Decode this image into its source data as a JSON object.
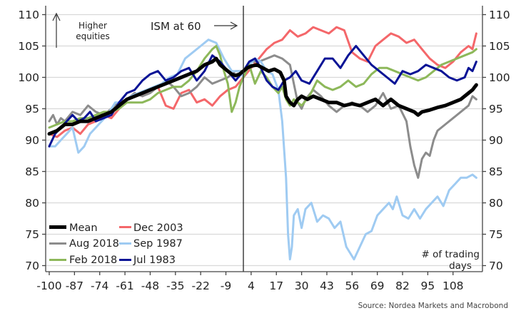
{
  "chart_data": {
    "type": "line",
    "title": "",
    "xlabel": "# of trading days",
    "ylabel": "",
    "xlim": [
      -102,
      123
    ],
    "ylim": [
      69,
      111
    ],
    "grid": true,
    "legend_placement": "bottom-left",
    "x_ticks": [
      -100,
      -87,
      -74,
      -61,
      -48,
      -35,
      -22,
      -9,
      4,
      17,
      30,
      43,
      56,
      69,
      82,
      95,
      108
    ],
    "y_ticks": [
      70,
      75,
      80,
      85,
      90,
      95,
      100,
      105,
      110
    ],
    "event_day": 0,
    "annotations": {
      "higher_equities": [
        "Higher",
        "equities"
      ],
      "ism": "ISM at 60",
      "xlabel_lines": [
        "# of trading",
        "days"
      ],
      "source": "Source: Nordea Markets and Macrobond"
    },
    "series": [
      {
        "name": "Dec 2003",
        "color": "#f4676a",
        "x": [
          -100,
          -96,
          -92,
          -88,
          -84,
          -80,
          -76,
          -72,
          -68,
          -64,
          -60,
          -56,
          -52,
          -48,
          -44,
          -40,
          -36,
          -32,
          -28,
          -24,
          -20,
          -16,
          -12,
          -8,
          -4,
          0,
          4,
          8,
          12,
          16,
          20,
          24,
          28,
          32,
          36,
          40,
          44,
          48,
          52,
          56,
          60,
          64,
          68,
          72,
          76,
          80,
          84,
          88,
          92,
          96,
          100,
          104,
          108,
          112,
          116,
          118,
          120
        ],
        "y": [
          91,
          90.5,
          91.5,
          92,
          91,
          92.5,
          93,
          94,
          93.5,
          95,
          96.5,
          97.5,
          97,
          98,
          98.5,
          95.5,
          95,
          97.5,
          98,
          96,
          96.5,
          95.5,
          97,
          98,
          98.5,
          100,
          101.5,
          103,
          104.5,
          105.5,
          106,
          107.5,
          106.5,
          107,
          108,
          107.5,
          107,
          108,
          107.5,
          104,
          103,
          102.5,
          105,
          106,
          107,
          106.5,
          105.5,
          106,
          104.5,
          103,
          102,
          101.5,
          102.5,
          104,
          105,
          104.5,
          107
        ]
      },
      {
        "name": "Aug 2018",
        "color": "#8c8c8c",
        "x": [
          -100,
          -98,
          -96,
          -94,
          -92,
          -88,
          -84,
          -80,
          -76,
          -72,
          -68,
          -64,
          -60,
          -56,
          -52,
          -48,
          -44,
          -40,
          -36,
          -32,
          -28,
          -24,
          -20,
          -16,
          -12,
          -8,
          -4,
          0,
          4,
          8,
          12,
          16,
          20,
          24,
          26,
          28,
          30,
          32,
          36,
          40,
          44,
          48,
          52,
          56,
          60,
          64,
          68,
          72,
          76,
          80,
          84,
          86,
          88,
          90,
          92,
          94,
          96,
          98,
          100,
          104,
          108,
          112,
          116,
          118,
          120
        ],
        "y": [
          93,
          94,
          92.5,
          93.5,
          93,
          94.5,
          94,
          95.5,
          94.5,
          94,
          95,
          96,
          96.5,
          97.5,
          97,
          97.5,
          98.5,
          99.5,
          98.5,
          97,
          97.5,
          98.5,
          100,
          99,
          99.5,
          100,
          101,
          101,
          102.5,
          102.5,
          103,
          103.5,
          103,
          102,
          99,
          96,
          95,
          96.5,
          98,
          97,
          95.5,
          94.5,
          95.5,
          96,
          95.5,
          94.5,
          95.5,
          97.5,
          95,
          95.5,
          93,
          89,
          86,
          84,
          87,
          88,
          87.5,
          90,
          91.5,
          92.5,
          93.5,
          94.5,
          95.5,
          97,
          96.5
        ]
      },
      {
        "name": "Sep 1987",
        "color": "#9fcbf2",
        "x": [
          -100,
          -97,
          -94,
          -91,
          -88,
          -85,
          -82,
          -79,
          -76,
          -73,
          -70,
          -66,
          -62,
          -58,
          -54,
          -50,
          -46,
          -42,
          -38,
          -34,
          -30,
          -26,
          -22,
          -18,
          -14,
          -10,
          -6,
          -2,
          0,
          3,
          6,
          9,
          12,
          15,
          18,
          20,
          22,
          23,
          24,
          25,
          26,
          28,
          30,
          32,
          35,
          38,
          41,
          44,
          47,
          50,
          53,
          55,
          57,
          60,
          63,
          66,
          69,
          72,
          75,
          77,
          79,
          82,
          85,
          88,
          91,
          94,
          97,
          100,
          103,
          106,
          109,
          112,
          115,
          118,
          120
        ],
        "y": [
          89,
          89,
          90,
          91,
          92,
          88,
          89,
          91,
          92,
          93,
          94,
          96,
          96,
          97,
          97.5,
          98,
          98.5,
          99,
          100,
          100.5,
          103,
          104,
          105,
          106,
          105.5,
          103,
          101,
          101,
          100,
          102,
          103,
          102.5,
          101,
          100.5,
          98,
          93,
          84,
          75,
          71,
          73,
          78,
          79,
          76,
          79,
          80,
          77,
          78,
          77.5,
          76,
          77,
          73,
          72,
          71,
          73,
          75,
          75.5,
          78,
          79,
          80,
          79,
          81,
          78,
          77.5,
          79,
          77.5,
          79,
          80,
          81,
          79.5,
          82,
          83,
          84,
          84,
          84.5,
          84
        ]
      },
      {
        "name": "Feb 2018",
        "color": "#8db85a",
        "x": [
          -100,
          -96,
          -92,
          -88,
          -84,
          -80,
          -76,
          -72,
          -68,
          -64,
          -60,
          -56,
          -52,
          -48,
          -44,
          -40,
          -36,
          -32,
          -28,
          -24,
          -20,
          -16,
          -14,
          -12,
          -10,
          -8,
          -6,
          -4,
          -2,
          0,
          3,
          6,
          9,
          12,
          15,
          18,
          20,
          22,
          24,
          26,
          28,
          30,
          34,
          38,
          42,
          46,
          50,
          54,
          58,
          62,
          66,
          70,
          74,
          78,
          82,
          86,
          90,
          94,
          98,
          102,
          106,
          110,
          114,
          118,
          120
        ],
        "y": [
          92,
          92.5,
          93,
          93,
          93.5,
          93.5,
          94,
          94.5,
          94.5,
          95,
          96,
          96,
          96,
          96.5,
          97.5,
          98,
          98.5,
          98.5,
          99.5,
          101,
          103,
          104.5,
          105,
          103.5,
          101,
          99,
          94.5,
          96,
          98.5,
          100,
          102,
          99,
          101,
          100,
          98.5,
          97.5,
          98.5,
          96.5,
          95.5,
          96.5,
          96,
          95.5,
          97,
          99.5,
          98.5,
          98,
          98.5,
          99.5,
          98.5,
          99,
          100.5,
          101.5,
          101.5,
          101,
          100.5,
          100,
          99.5,
          100,
          101,
          102,
          102.5,
          103,
          103.5,
          104,
          104.5
        ]
      },
      {
        "name": "Jul 1983",
        "color": "#0a1496",
        "x": [
          -100,
          -97,
          -94,
          -91,
          -88,
          -85,
          -82,
          -79,
          -76,
          -72,
          -68,
          -64,
          -60,
          -56,
          -52,
          -48,
          -44,
          -40,
          -36,
          -32,
          -28,
          -24,
          -20,
          -16,
          -12,
          -8,
          -4,
          0,
          3,
          6,
          9,
          12,
          15,
          18,
          21,
          24,
          27,
          30,
          34,
          38,
          42,
          46,
          50,
          54,
          58,
          62,
          66,
          70,
          74,
          78,
          82,
          86,
          90,
          94,
          98,
          102,
          106,
          110,
          114,
          116,
          118,
          120
        ],
        "y": [
          89,
          91,
          92,
          93,
          94,
          93,
          93.5,
          94.5,
          93,
          93.5,
          94,
          96,
          97.5,
          98,
          99.5,
          100.5,
          101,
          99.5,
          100,
          101,
          101.5,
          99.5,
          101,
          103.5,
          102.5,
          101,
          99.5,
          101,
          102.5,
          103,
          101.5,
          99.5,
          98.5,
          98,
          99.5,
          100,
          101,
          99.5,
          99,
          101,
          103,
          103,
          101.5,
          103.5,
          105,
          103.5,
          102,
          101,
          100,
          99,
          101,
          100.5,
          101,
          102,
          101.5,
          101,
          100,
          99.5,
          100,
          101.5,
          101,
          102.5
        ]
      },
      {
        "name": "Mean",
        "color": "#000000",
        "x": [
          -100,
          -96,
          -92,
          -88,
          -84,
          -80,
          -76,
          -72,
          -68,
          -64,
          -60,
          -56,
          -52,
          -48,
          -44,
          -40,
          -36,
          -32,
          -28,
          -24,
          -20,
          -16,
          -14,
          -12,
          -10,
          -8,
          -6,
          -4,
          -2,
          0,
          2,
          4,
          7,
          10,
          13,
          16,
          19,
          21,
          22,
          24,
          26,
          28,
          30,
          33,
          36,
          40,
          44,
          48,
          52,
          56,
          60,
          64,
          68,
          72,
          76,
          80,
          84,
          88,
          90,
          92,
          96,
          100,
          104,
          108,
          112,
          116,
          118,
          120
        ],
        "y": [
          91,
          91.5,
          92.5,
          92.5,
          93,
          93,
          93.5,
          94,
          94.5,
          95.5,
          96.5,
          97,
          97.5,
          98,
          98.5,
          99,
          99.5,
          100,
          100.5,
          101,
          102,
          102.5,
          103,
          102,
          101.5,
          101,
          100.5,
          100.3,
          100.5,
          101,
          101.5,
          101.8,
          102,
          101.5,
          101,
          101.3,
          100.8,
          99.5,
          97,
          96,
          95.5,
          96.5,
          97,
          96.5,
          97,
          96.5,
          96,
          96,
          95.5,
          95.8,
          95.5,
          96,
          96.5,
          95.5,
          96.5,
          95.5,
          95,
          94.5,
          94,
          94.5,
          94.8,
          95.2,
          95.5,
          96,
          96.5,
          97.5,
          98,
          98.8
        ]
      }
    ]
  },
  "legend": {
    "items": [
      {
        "label": "Mean",
        "color": "#000000"
      },
      {
        "label": "Dec 2003",
        "color": "#f4676a"
      },
      {
        "label": "Aug 2018",
        "color": "#8c8c8c"
      },
      {
        "label": "Sep 1987",
        "color": "#9fcbf2"
      },
      {
        "label": "Feb 2018",
        "color": "#8db85a"
      },
      {
        "label": "Jul 1983",
        "color": "#0a1496"
      }
    ]
  },
  "colors": {
    "grid": "#d9d9d9",
    "axis": "#444444",
    "event_line": "#222222"
  }
}
